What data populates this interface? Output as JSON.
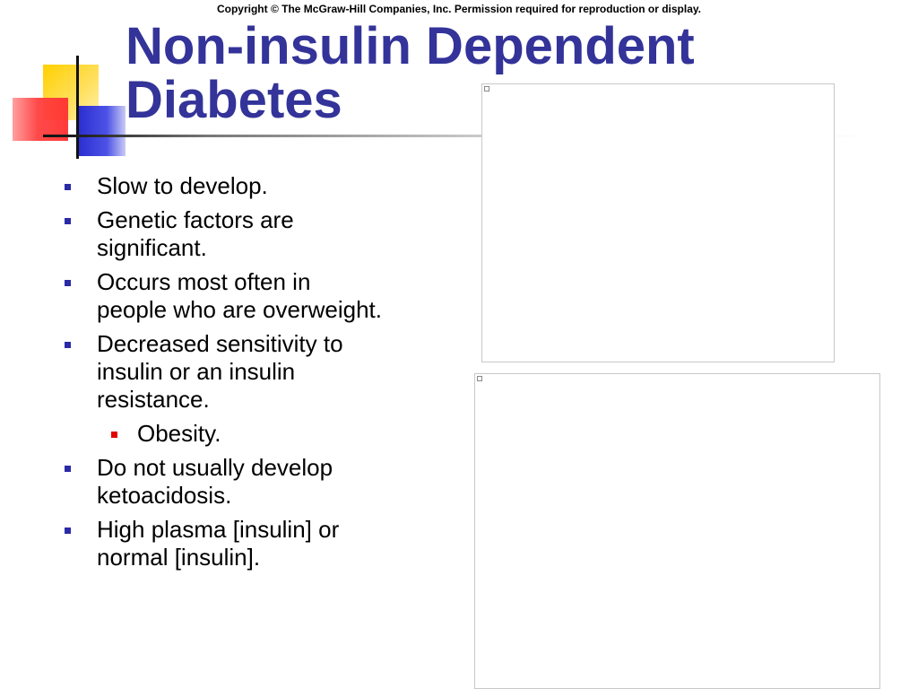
{
  "copyright": "Copyright © The McGraw-Hill Companies, Inc. Permission required for reproduction or display.",
  "title": {
    "line1": "Non-insulin Dependent",
    "line2": "Diabetes"
  },
  "bullets": [
    {
      "level": 1,
      "text": "Slow to develop."
    },
    {
      "level": 1,
      "text": "Genetic factors are significant."
    },
    {
      "level": 1,
      "text": "Occurs most often in people who are overweight."
    },
    {
      "level": 1,
      "text": "Decreased sensitivity to insulin or an insulin resistance."
    },
    {
      "level": 2,
      "text": "Obesity."
    },
    {
      "level": 1,
      "text": "Do not usually develop ketoacidosis."
    },
    {
      "level": 1,
      "text": "High plasma [insulin] or normal [insulin]."
    }
  ],
  "colors": {
    "title": "#333399",
    "bullet_level1": "#2a2aa8",
    "bullet_level2": "#e00000"
  },
  "icons": [
    "broken-image-icon",
    "broken-image-icon"
  ]
}
